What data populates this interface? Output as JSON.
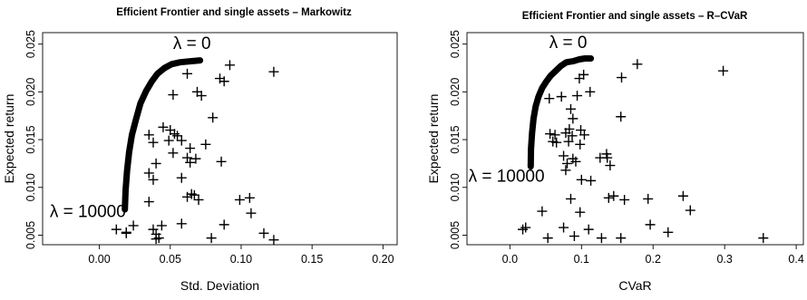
{
  "chart_data": [
    {
      "type": "scatter",
      "title": "Efficient Frontier and single assets – Markowitz",
      "xlabel": "Std. Deviation",
      "ylabel": "Expected return",
      "xlim": [
        -0.04,
        0.21
      ],
      "ylim": [
        0.004,
        0.0262
      ],
      "x_ticks": [
        0.0,
        0.05,
        0.1,
        0.15,
        0.2
      ],
      "x_tick_labels": [
        "0.00",
        "0.05",
        "0.10",
        "0.15",
        "0.20"
      ],
      "y_ticks": [
        0.005,
        0.01,
        0.015,
        0.02,
        0.025
      ],
      "y_tick_labels": [
        "0.005",
        "0.010",
        "0.015",
        "0.020",
        "0.025"
      ],
      "grid": false,
      "frontier": {
        "x": [
          0.018,
          0.0185,
          0.0195,
          0.021,
          0.023,
          0.026,
          0.029,
          0.033,
          0.037,
          0.041,
          0.046,
          0.051,
          0.057,
          0.064,
          0.071
        ],
        "y": [
          0.0077,
          0.0097,
          0.0117,
          0.0137,
          0.0155,
          0.0172,
          0.0188,
          0.0201,
          0.0211,
          0.0219,
          0.0225,
          0.0229,
          0.0231,
          0.0232,
          0.0233
        ]
      },
      "frontier_annotations": [
        {
          "text": "λ = 0",
          "x": 0.052,
          "y": 0.0245
        },
        {
          "text": "λ = 10000",
          "x": -0.035,
          "y": 0.0069
        }
      ],
      "assets": {
        "x": [
          0.092,
          0.123,
          0.085,
          0.088,
          0.062,
          0.069,
          0.052,
          0.072,
          0.08,
          0.045,
          0.05,
          0.053,
          0.055,
          0.049,
          0.035,
          0.038,
          0.058,
          0.064,
          0.075,
          0.052,
          0.062,
          0.068,
          0.064,
          0.086,
          0.035,
          0.038,
          0.04,
          0.058,
          0.062,
          0.065,
          0.067,
          0.07,
          0.099,
          0.106,
          0.107,
          0.035,
          0.044,
          0.058,
          0.088,
          0.024,
          0.019,
          0.038,
          0.04,
          0.042,
          0.04,
          0.079,
          0.116,
          0.123,
          0.012,
          0.019
        ],
        "y": [
          0.0228,
          0.0221,
          0.0214,
          0.0211,
          0.0219,
          0.02,
          0.0197,
          0.0196,
          0.0173,
          0.0163,
          0.016,
          0.0156,
          0.0154,
          0.0149,
          0.0155,
          0.0147,
          0.0149,
          0.0141,
          0.0145,
          0.0136,
          0.0131,
          0.013,
          0.0126,
          0.0127,
          0.0115,
          0.0108,
          0.0125,
          0.011,
          0.009,
          0.0093,
          0.0092,
          0.0087,
          0.0087,
          0.0089,
          0.0073,
          0.0085,
          0.006,
          0.0062,
          0.0061,
          0.006,
          0.0053,
          0.0056,
          0.0051,
          0.0047,
          0.0046,
          0.0047,
          0.0052,
          0.0045,
          0.0056,
          0.0052
        ]
      }
    },
    {
      "type": "scatter",
      "title": "Efficient Frontier and single assets – R–CVaR",
      "xlabel": "CVaR",
      "ylabel": "Expected return",
      "xlim": [
        -0.06,
        0.41
      ],
      "ylim": [
        0.004,
        0.0262
      ],
      "x_ticks": [
        0.0,
        0.1,
        0.2,
        0.3,
        0.4
      ],
      "x_tick_labels": [
        "0.0",
        "0.1",
        "0.2",
        "0.3",
        "0.4"
      ],
      "y_ticks": [
        0.005,
        0.01,
        0.015,
        0.02,
        0.025
      ],
      "y_tick_labels": [
        "0.005",
        "0.010",
        "0.015",
        "0.020",
        "0.025"
      ],
      "grid": false,
      "frontier": {
        "x": [
          0.029,
          0.0295,
          0.031,
          0.033,
          0.036,
          0.04,
          0.045,
          0.051,
          0.057,
          0.064,
          0.071,
          0.079,
          0.088,
          0.097,
          0.105,
          0.113
        ],
        "y": [
          0.0122,
          0.014,
          0.0157,
          0.0172,
          0.0185,
          0.0195,
          0.0204,
          0.0211,
          0.0217,
          0.0222,
          0.0227,
          0.0231,
          0.0232,
          0.0234,
          0.0235,
          0.0235
        ]
      },
      "frontier_annotations": [
        {
          "text": "λ = 0",
          "x": 0.055,
          "y": 0.0246
        },
        {
          "text": "λ = 10000",
          "x": -0.058,
          "y": 0.0106
        }
      ],
      "assets": {
        "x": [
          0.178,
          0.298,
          0.097,
          0.103,
          0.156,
          0.112,
          0.055,
          0.072,
          0.094,
          0.085,
          0.088,
          0.155,
          0.056,
          0.063,
          0.078,
          0.083,
          0.087,
          0.099,
          0.104,
          0.06,
          0.065,
          0.082,
          0.098,
          0.136,
          0.075,
          0.08,
          0.088,
          0.092,
          0.135,
          0.078,
          0.126,
          0.14,
          0.145,
          0.1,
          0.113,
          0.138,
          0.193,
          0.242,
          0.085,
          0.16,
          0.252,
          0.098,
          0.045,
          0.018,
          0.022,
          0.075,
          0.11,
          0.196,
          0.221,
          0.053,
          0.09,
          0.128,
          0.155,
          0.354
        ],
        "y": [
          0.0229,
          0.0222,
          0.0214,
          0.0218,
          0.0215,
          0.02,
          0.0193,
          0.0195,
          0.0196,
          0.0182,
          0.0172,
          0.0174,
          0.0156,
          0.0155,
          0.0157,
          0.0161,
          0.0154,
          0.016,
          0.0155,
          0.0148,
          0.0147,
          0.0148,
          0.0145,
          0.0131,
          0.0133,
          0.0125,
          0.013,
          0.0127,
          0.0135,
          0.0118,
          0.0131,
          0.0123,
          0.0091,
          0.0108,
          0.0107,
          0.0089,
          0.0088,
          0.0091,
          0.0088,
          0.0087,
          0.0076,
          0.0074,
          0.0075,
          0.0056,
          0.0058,
          0.0058,
          0.0056,
          0.0061,
          0.0053,
          0.0047,
          0.0049,
          0.0047,
          0.0047,
          0.0047
        ]
      }
    }
  ]
}
